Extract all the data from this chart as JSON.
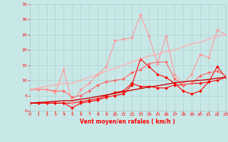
{
  "x": [
    0,
    1,
    2,
    3,
    4,
    5,
    6,
    7,
    8,
    9,
    10,
    11,
    12,
    13,
    14,
    15,
    16,
    17,
    18,
    19,
    20,
    21,
    22,
    23
  ],
  "series": [
    {
      "color": "#FF0000",
      "linewidth": 0.8,
      "markersize": 2.0,
      "y": [
        2.5,
        2.5,
        2.5,
        2.5,
        2.5,
        1.0,
        2.5,
        3.0,
        3.5,
        4.5,
        5.0,
        5.5,
        8.5,
        17.0,
        14.5,
        12.0,
        11.0,
        9.0,
        6.5,
        5.5,
        6.5,
        9.5,
        14.5,
        11.0
      ]
    },
    {
      "color": "#FF0000",
      "linewidth": 0.8,
      "markersize": 2.0,
      "y": [
        2.5,
        2.5,
        2.5,
        2.5,
        2.5,
        2.5,
        3.0,
        3.5,
        4.0,
        5.0,
        6.0,
        6.5,
        9.0,
        8.0,
        8.0,
        7.5,
        7.5,
        8.5,
        8.5,
        9.0,
        9.0,
        9.5,
        10.0,
        11.0
      ]
    },
    {
      "color": "#FF6666",
      "linewidth": 0.8,
      "markersize": 2.0,
      "y": [
        7.0,
        7.0,
        7.0,
        6.5,
        6.5,
        4.5,
        5.0,
        6.5,
        8.5,
        9.5,
        10.0,
        10.5,
        12.5,
        13.5,
        15.5,
        16.0,
        16.0,
        10.5,
        8.5,
        9.0,
        11.5,
        12.5,
        13.0,
        11.5
      ]
    },
    {
      "color": "#FF9999",
      "linewidth": 0.8,
      "markersize": 2.0,
      "y": [
        7.0,
        7.0,
        7.0,
        6.0,
        13.5,
        2.5,
        7.0,
        9.0,
        12.0,
        14.5,
        23.0,
        23.5,
        24.0,
        31.5,
        24.5,
        15.5,
        24.5,
        12.0,
        9.0,
        12.0,
        18.5,
        17.5,
        26.5,
        25.0
      ]
    },
    {
      "color": "#FFB0B0",
      "linewidth": 1.0,
      "markersize": 0,
      "y": [
        7.0,
        7.5,
        8.0,
        8.5,
        9.0,
        9.0,
        10.0,
        11.0,
        12.0,
        13.0,
        14.0,
        15.0,
        16.0,
        17.0,
        18.0,
        18.5,
        19.5,
        20.0,
        21.0,
        22.0,
        22.5,
        23.5,
        24.5,
        25.0
      ]
    },
    {
      "color": "#CC0000",
      "linewidth": 1.0,
      "markersize": 0,
      "y": [
        2.5,
        2.7,
        2.9,
        3.1,
        3.3,
        3.3,
        3.8,
        4.2,
        4.7,
        5.2,
        5.7,
        6.2,
        6.8,
        7.3,
        7.8,
        8.2,
        8.7,
        9.2,
        9.5,
        9.8,
        10.0,
        10.3,
        10.7,
        11.0
      ]
    }
  ],
  "xlabel": "Vent moyen/en rafales ( km/h )",
  "xlim": [
    0,
    23
  ],
  "ylim": [
    0,
    35
  ],
  "yticks": [
    0,
    5,
    10,
    15,
    20,
    25,
    30,
    35
  ],
  "xticks": [
    0,
    1,
    2,
    3,
    4,
    5,
    6,
    7,
    8,
    9,
    10,
    11,
    12,
    13,
    14,
    15,
    16,
    17,
    18,
    19,
    20,
    21,
    22,
    23
  ],
  "bg_color": "#C8E8E8",
  "grid_color": "#AACCCC",
  "tick_color": "#FF0000",
  "label_color": "#FF0000"
}
